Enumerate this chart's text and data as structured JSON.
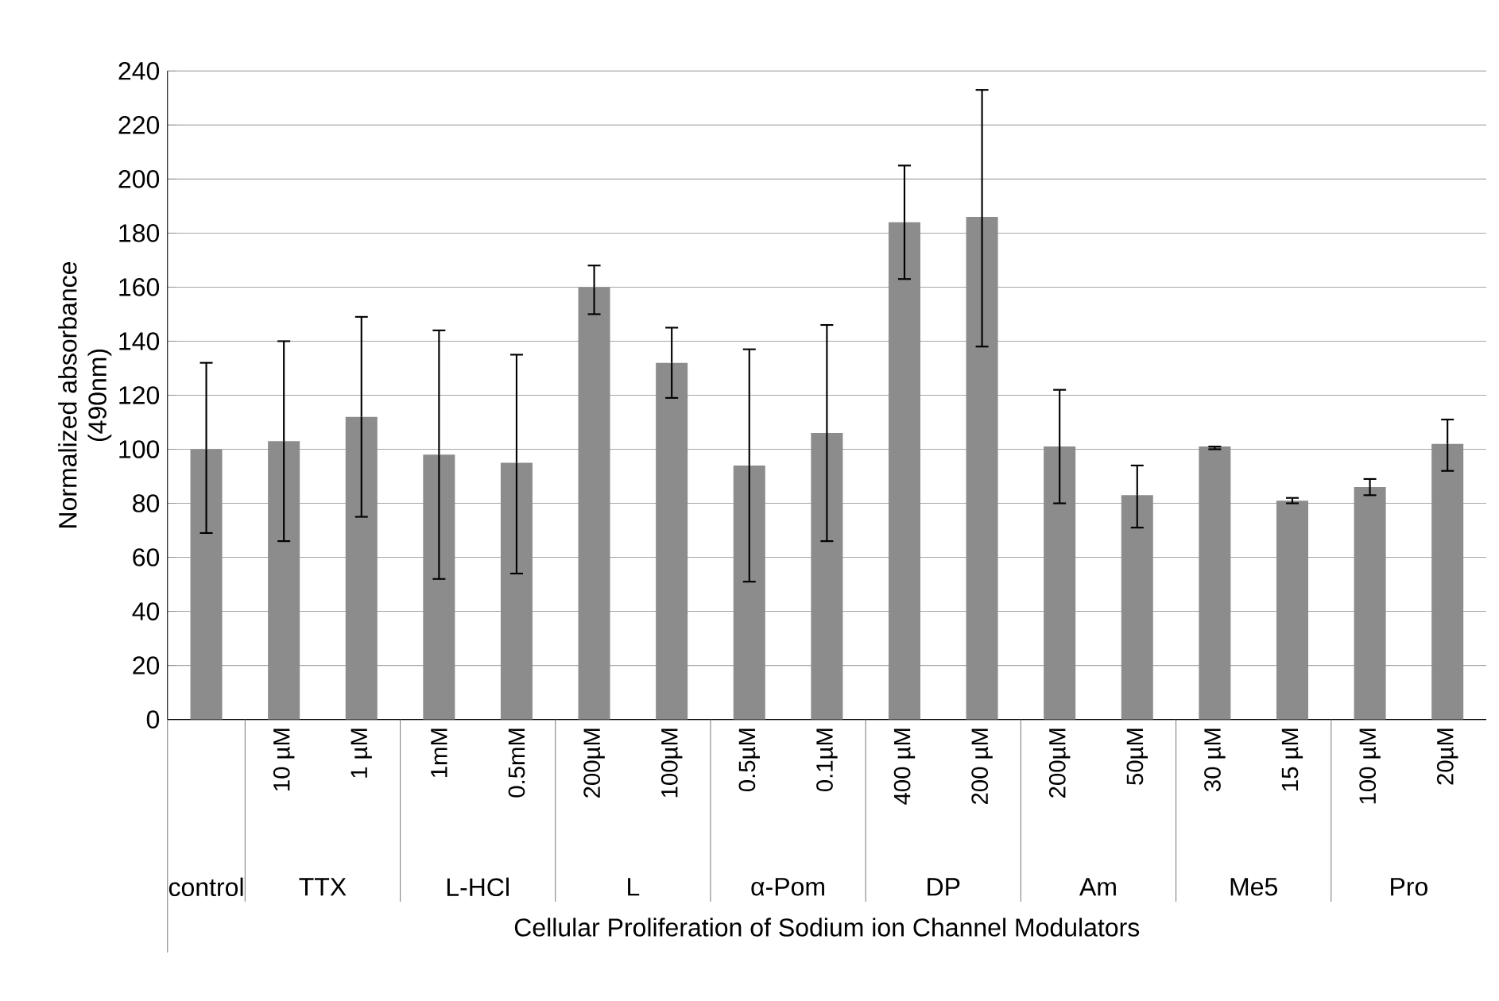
{
  "chart_data": {
    "type": "bar",
    "xlabel": "Cellular Proliferation of Sodium ion Channel Modulators",
    "ylabel": "Normalized absorbance (490nm)",
    "categories": [
      null,
      "10 µM",
      "1 µM",
      "1mM",
      "0.5mM",
      "200µM",
      "100µM",
      "0.5µM",
      "0.1µM",
      "400 µM",
      "200 µM",
      "200µM",
      "50µM",
      "30 µM",
      "15 µM",
      "100 µM",
      "20µM"
    ],
    "values": [
      100,
      103,
      112,
      98,
      95,
      160,
      132,
      94,
      106,
      184,
      186,
      101,
      83,
      101,
      81,
      86,
      102
    ],
    "errors": [
      [
        69,
        132
      ],
      [
        66,
        140
      ],
      [
        75,
        149
      ],
      [
        52,
        144
      ],
      [
        54,
        135
      ],
      [
        150,
        168
      ],
      [
        119,
        145
      ],
      [
        51,
        137
      ],
      [
        66,
        146
      ],
      [
        163,
        205
      ],
      [
        138,
        233
      ],
      [
        80,
        122
      ],
      [
        71,
        94
      ],
      [
        100,
        101
      ],
      [
        80,
        82
      ],
      [
        83,
        89
      ],
      [
        92,
        111
      ]
    ],
    "color": "#8c8c8c",
    "ylim": [
      0,
      240
    ],
    "yticks": [
      0,
      20,
      40,
      60,
      80,
      100,
      120,
      140,
      160,
      180,
      200,
      220,
      240
    ],
    "grid": "y",
    "annotations": [
      "control",
      "TTX",
      "L-HCl",
      "L",
      "α-Pom",
      "DP",
      "Am",
      "Me5",
      "Pro"
    ]
  }
}
